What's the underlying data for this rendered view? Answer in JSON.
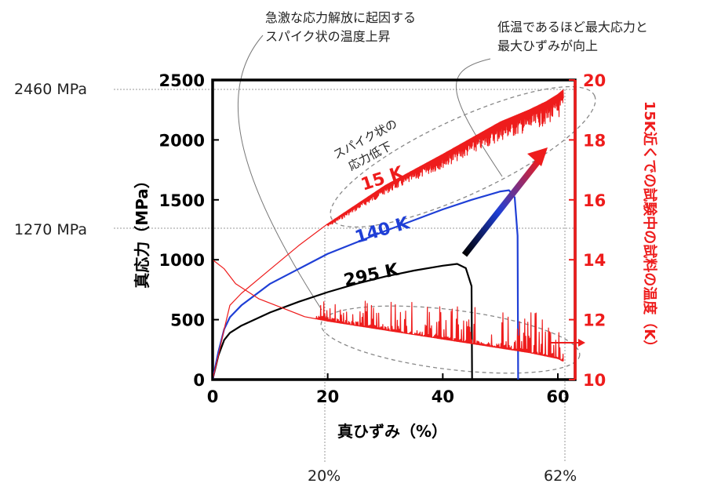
{
  "chart_data": {
    "type": "line",
    "xlabel": "真ひずみ（%）",
    "ylabel": "真応力（MPa）",
    "y2label": "15K近くでの試験中の試料の温度（K）",
    "xlim": [
      0,
      63
    ],
    "ylim": [
      0,
      2500
    ],
    "y2lim": [
      10,
      20
    ],
    "x_ticks": [
      0,
      20,
      40,
      60
    ],
    "y_ticks": [
      0,
      500,
      1000,
      1500,
      2000,
      2500
    ],
    "y2_ticks": [
      10,
      12,
      14,
      16,
      18,
      20
    ],
    "grid": false,
    "series": [
      {
        "name": "295 K",
        "color": "#000000",
        "axis": "left",
        "x": [
          0,
          1,
          2,
          3,
          5,
          10,
          15,
          20,
          25,
          30,
          35,
          40,
          42.5,
          44,
          45,
          45.1
        ],
        "values": [
          0,
          200,
          330,
          390,
          450,
          560,
          650,
          730,
          800,
          860,
          910,
          950,
          965,
          930,
          780,
          0
        ]
      },
      {
        "name": "140 K",
        "color": "#1f3fd6",
        "axis": "left",
        "x": [
          0,
          1,
          2,
          3,
          5,
          10,
          20,
          30,
          40,
          45,
          50,
          51.5,
          52.5,
          53,
          53.1
        ],
        "values": [
          0,
          230,
          420,
          520,
          620,
          800,
          1050,
          1240,
          1420,
          1500,
          1570,
          1580,
          1520,
          1200,
          0
        ]
      },
      {
        "name": "15 K",
        "color": "#ee1c1c",
        "axis": "left",
        "x": [
          0,
          1,
          2,
          3,
          5,
          10,
          15,
          20,
          30,
          40,
          50,
          55,
          58,
          60,
          61
        ],
        "values": [
          0,
          200,
          420,
          620,
          720,
          920,
          1120,
          1300,
          1620,
          1880,
          2150,
          2250,
          2320,
          2380,
          2420
        ]
      },
      {
        "name": "",
        "color": "#ee1c1c",
        "axis": "right",
        "x": [
          0,
          2,
          4,
          8,
          12,
          16,
          20,
          25,
          30,
          35,
          40,
          45,
          50,
          55,
          60,
          61
        ],
        "values": [
          14.0,
          13.7,
          13.2,
          12.7,
          12.4,
          12.1,
          11.95,
          11.8,
          11.65,
          11.5,
          11.35,
          11.2,
          11.05,
          10.9,
          10.7,
          10.6
        ]
      }
    ],
    "annotations": {
      "spike_temp": "急激な応力解放に起因する\nスパイク状の温度上昇",
      "max_stress": "低温であるほど最大応力と\n最大ひずみが向上",
      "spike_stress": "スパイク状の\n応力低下"
    },
    "reference_labels": {
      "y1": "2460 MPa",
      "y2": "1270 MPa",
      "x1": "20%",
      "x2": "62%"
    }
  }
}
